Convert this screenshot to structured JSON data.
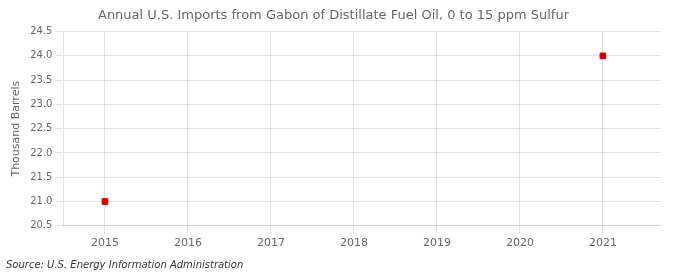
{
  "chart_data": {
    "type": "scatter",
    "title": "Annual U.S. Imports from Gabon of Distillate Fuel Oil, 0 to 15 ppm Sulfur",
    "ylabel": "Thousand Barrels",
    "source": "Source: U.S. Energy Information Administration",
    "x": [
      2015,
      2021
    ],
    "values": [
      21.0,
      24.0
    ],
    "color": "#cc0000",
    "marker": "square",
    "xlim": [
      2014.5,
      2021.7
    ],
    "xticks": [
      2015,
      2016,
      2017,
      2018,
      2019,
      2020,
      2021
    ],
    "ylim": [
      20.5,
      24.5
    ],
    "yticks": [
      20.5,
      {
        "value": 21.0,
        "label": "21.0"
      },
      21.5,
      {
        "value": 22.0,
        "label": "22.0"
      },
      22.5,
      {
        "value": 23.0,
        "label": "23.0"
      },
      23.5,
      {
        "value": 24.0,
        "label": "24.0"
      },
      24.5
    ],
    "grid": true
  }
}
